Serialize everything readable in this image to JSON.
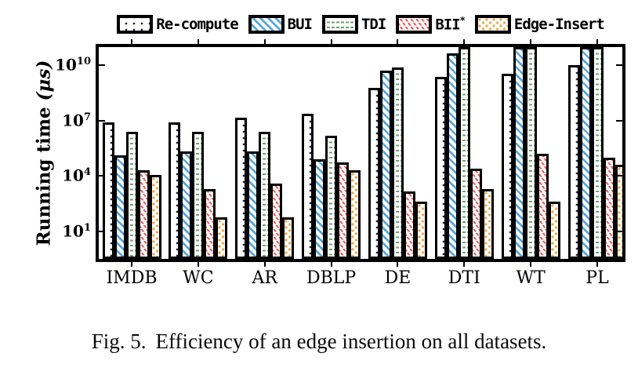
{
  "figure": {
    "caption_label": "Fig. 5.",
    "caption_text": "Efficiency of an edge insertion on all datasets.",
    "ylabel_main": "Running time ",
    "ylabel_unit": "(μs)"
  },
  "chart_data": {
    "type": "bar",
    "y_scale": "log",
    "ylabel": "Running time (μs)",
    "ylim": [
      1,
      100000000000
    ],
    "ytick_exponents": [
      1,
      4,
      7,
      10
    ],
    "grid": false,
    "legend_position": "top",
    "clip_note_max_value": 100000000000,
    "categories": [
      "IMDB",
      "WC",
      "AR",
      "DBLP",
      "DE",
      "DTI",
      "WT",
      "PL"
    ],
    "series": [
      {
        "name": "Re-compute",
        "hatch": "dots-black",
        "color": "#1c2340",
        "values": [
          8000000,
          8000000,
          15000000,
          25000000,
          600000000,
          2400000000,
          3500000000,
          10000000000
        ]
      },
      {
        "name": "BUI",
        "hatch": "diag-blue",
        "color": "#57a7db",
        "values": [
          130000,
          220000,
          220000,
          80000,
          5500000000,
          46000000000,
          100000000000,
          100000000000
        ]
      },
      {
        "name": "TDI",
        "hatch": "hdash-green",
        "color": "#6fa46e",
        "values": [
          2500000,
          2500000,
          2400000,
          1500000,
          8000000000,
          100000000000,
          100000000000,
          100000000000
        ]
      },
      {
        "name": "BII*",
        "hatch": "diag-red",
        "color": "#ee5e5e",
        "values": [
          20000,
          2000,
          4000,
          55000,
          1400,
          25000,
          160000,
          100000
        ]
      },
      {
        "name": "Edge-Insert",
        "hatch": "dots-orange",
        "color": "#f2a53d",
        "values": [
          12000,
          60,
          60,
          20000,
          400,
          2000,
          400,
          40000
        ]
      }
    ]
  }
}
